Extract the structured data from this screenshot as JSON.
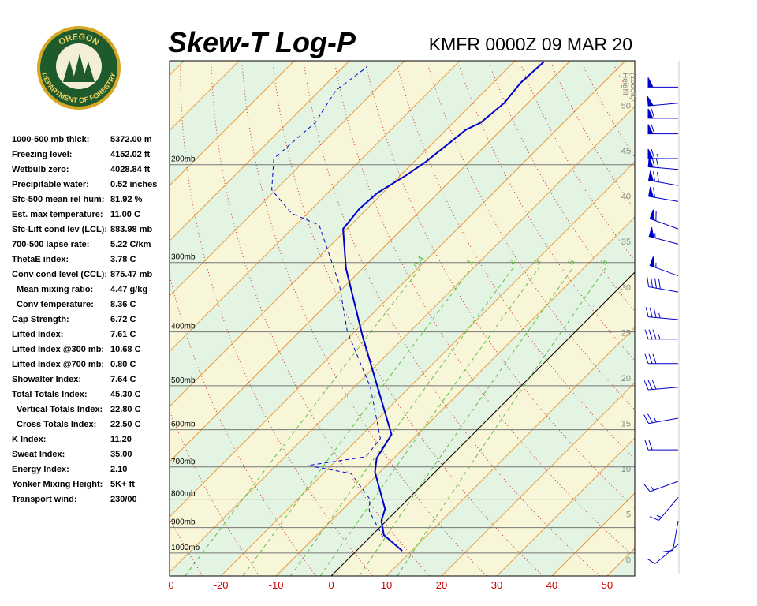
{
  "logo": {
    "top": "OREGON",
    "bottom": "DEPARTMENT OF FORESTRY"
  },
  "indices": [
    [
      "1000-500 mb thick:",
      "5372.00 m"
    ],
    [
      "Freezing level:",
      "4152.02 ft"
    ],
    [
      "Wetbulb zero:",
      "4028.84 ft"
    ],
    [
      "Precipitable water:",
      "0.52 inches"
    ],
    [
      "Sfc-500 mean rel hum:",
      "81.92 %"
    ],
    [
      "Est. max temperature:",
      "11.00 C"
    ],
    [
      "Sfc-Lift cond lev (LCL):",
      "883.98 mb"
    ],
    [
      "700-500 lapse rate:",
      "5.22 C/km"
    ],
    [
      "ThetaE index:",
      "3.78 C"
    ],
    [
      "Conv cond level (CCL):",
      "875.47 mb"
    ],
    [
      "Mean mixing ratio:",
      "4.47 g/kg"
    ],
    [
      "Conv temperature:",
      "8.36 C"
    ],
    [
      "Cap Strength:",
      "6.72 C"
    ],
    [
      "Lifted Index:",
      "7.61 C"
    ],
    [
      "Lifted Index @300 mb:",
      "10.68 C"
    ],
    [
      "Lifted Index @700 mb:",
      "0.80 C"
    ],
    [
      "Showalter Index:",
      "7.64 C"
    ],
    [
      "Total Totals Index:",
      "45.30 C"
    ],
    [
      "Vertical Totals Index:",
      "22.80 C"
    ],
    [
      "Cross Totals Index:",
      "22.50 C"
    ],
    [
      "K Index:",
      "11.20"
    ],
    [
      "Sweat Index:",
      "35.00"
    ],
    [
      "Energy Index:",
      "2.10"
    ],
    [
      "Yonker Mixing Height:",
      "5K+ ft"
    ],
    [
      "Transport wind:",
      "230/00"
    ]
  ],
  "chart_data": {
    "type": "skewt",
    "title": "Skew-T Log-P",
    "subtitle": "KMFR 0000Z 09 MAR 20",
    "log_y": true,
    "ylim": [
      1100,
      130
    ],
    "yticks": [
      {
        "value": 1000,
        "label": "1000mb"
      },
      {
        "value": 900,
        "label": "900mb"
      },
      {
        "value": 800,
        "label": "800mb"
      },
      {
        "value": 700,
        "label": "700mb"
      },
      {
        "value": 600,
        "label": "600mb"
      },
      {
        "value": 500,
        "label": "500mb"
      },
      {
        "value": 400,
        "label": "400mb"
      },
      {
        "value": 300,
        "label": "300mb"
      },
      {
        "value": 200,
        "label": "200mb"
      }
    ],
    "xlim": [
      -29.3,
      55
    ],
    "xticks": [
      -20,
      -10,
      0,
      10,
      20,
      30,
      40,
      50
    ],
    "x_edge_label": "0",
    "y2label": [
      "Height",
      "(1000ft)"
    ],
    "y2lim": [
      -1.8,
      54.9
    ],
    "y2ticks": [
      0,
      5,
      10,
      15,
      20,
      25,
      30,
      35,
      40,
      45,
      50
    ],
    "mixing_ratio": {
      "values": [
        0.4,
        1,
        2,
        3,
        5,
        8
      ],
      "color": "#5cc040"
    },
    "isotherm_color": "#e89a3c",
    "adiabat_color": "#c83232",
    "temperature": {
      "color": "#0000cc",
      "pressure": [
        991,
        928,
        875,
        833,
        715,
        675,
        612,
        406,
        307,
        261,
        240,
        225,
        209,
        198,
        173,
        168,
        154.7,
        142.5,
        130.5
      ],
      "values": [
        8.3,
        2.1,
        -0.9,
        -2.4,
        -10.9,
        -13.1,
        -14.7,
        -37.9,
        -53.1,
        -60.7,
        -61.4,
        -61,
        -59,
        -57.9,
        -56.4,
        -55,
        -54.3,
        -55,
        -54.6
      ]
    },
    "dewpoint": {
      "color": "#0000cc",
      "pressure": [
        937,
        840,
        800,
        719,
        696,
        671,
        622,
        503,
        399,
        328,
        257,
        244.6,
        222,
        195,
        168,
        147,
        133.5
      ],
      "values": [
        2.4,
        -4.9,
        -6.9,
        -15,
        -24.3,
        -15.3,
        -16,
        -27.1,
        -41.4,
        -51.4,
        -65.7,
        -72.9,
        -80.7,
        -86,
        -85,
        -87.1,
        -85.7
      ]
    },
    "winds": {
      "color": "#0000cc",
      "pressure": [
        965,
        875,
        794,
        743,
        652,
        572,
        503,
        456,
        412,
        380,
        339,
        317,
        278,
        261,
        233,
        218,
        204,
        195,
        176,
        165,
        155,
        145
      ],
      "direction": [
        230,
        190,
        220,
        250,
        270,
        260,
        265,
        270,
        270,
        275,
        280,
        290,
        285,
        290,
        280,
        280,
        275,
        270,
        270,
        270,
        265,
        270
      ],
      "speed": [
        10,
        10,
        15,
        15,
        20,
        25,
        30,
        30,
        35,
        35,
        40,
        55,
        55,
        60,
        60,
        70,
        70,
        65,
        60,
        60,
        50,
        50
      ]
    }
  }
}
